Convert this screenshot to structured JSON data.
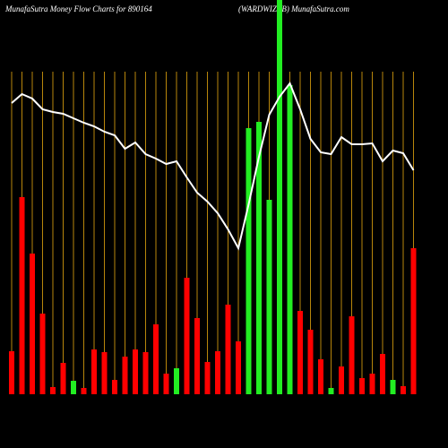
{
  "chart_data": {
    "type": "bar",
    "title": "MunafaSutra  Money Flow  Charts for 890164",
    "subtitle": "(WARDWIZFB) MunafaSutra.com",
    "ylim": [
      0,
      440
    ],
    "grid": true,
    "grid_color": "#b8860b",
    "series": [
      {
        "type": "bar",
        "values": [
          48,
          220,
          157,
          90,
          8,
          35,
          15,
          7,
          50,
          47,
          16,
          42,
          50,
          47,
          78,
          23,
          29,
          130,
          85,
          36,
          48,
          100,
          59,
          297,
          304,
          217,
          460,
          345,
          93,
          72,
          39,
          7,
          31,
          87,
          18,
          23,
          45,
          16,
          9,
          163
        ],
        "colors": [
          "#ff0000",
          "#ff0000",
          "#ff0000",
          "#ff0000",
          "#ff0000",
          "#ff0000",
          "#22ee22",
          "#ff0000",
          "#ff0000",
          "#ff0000",
          "#ff0000",
          "#ff0000",
          "#ff0000",
          "#ff0000",
          "#ff0000",
          "#ff0000",
          "#22ee22",
          "#ff0000",
          "#ff0000",
          "#ff0000",
          "#ff0000",
          "#ff0000",
          "#ff0000",
          "#22ee22",
          "#22ee22",
          "#22ee22",
          "#22ee22",
          "#22ee22",
          "#ff0000",
          "#ff0000",
          "#ff0000",
          "#22ee22",
          "#ff0000",
          "#ff0000",
          "#ff0000",
          "#ff0000",
          "#ff0000",
          "#22ee22",
          "#ff0000",
          "#ff0000"
        ]
      },
      {
        "type": "line",
        "color": "#ffffff",
        "values": [
          325,
          335,
          330,
          318,
          315,
          313,
          308,
          303,
          299,
          293,
          289,
          274,
          281,
          268,
          263,
          257,
          260,
          242,
          225,
          215,
          202,
          184,
          163,
          212,
          265,
          312,
          332,
          347,
          318,
          285,
          270,
          268,
          287,
          279,
          279,
          280,
          260,
          272,
          269,
          250
        ]
      }
    ]
  }
}
